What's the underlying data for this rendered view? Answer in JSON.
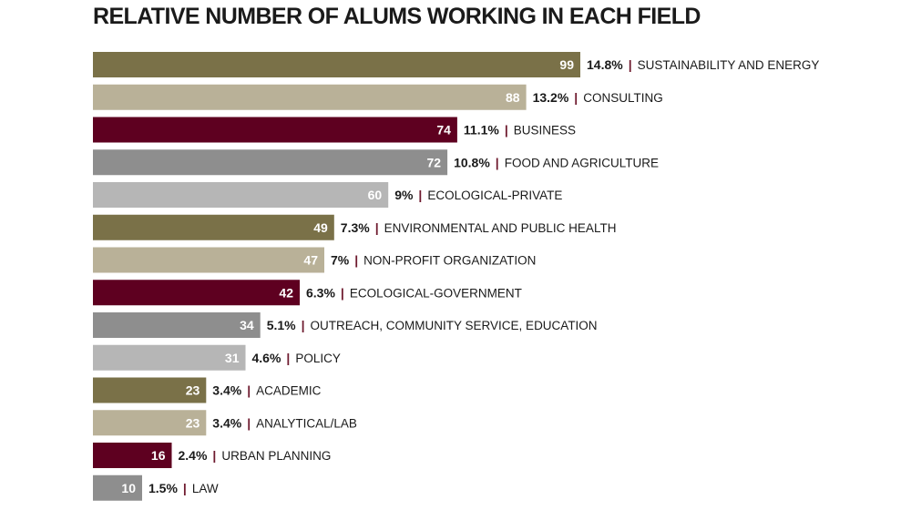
{
  "chart_data": {
    "type": "bar",
    "orientation": "horizontal",
    "title": "RELATIVE NUMBER OF ALUMS WORKING IN EACH FIELD",
    "xlabel": "",
    "ylabel": "",
    "xlim": [
      0,
      99
    ],
    "grid": false,
    "legend": "none",
    "separator": "|",
    "categories": [
      "SUSTAINABILITY AND ENERGY",
      "CONSULTING",
      "BUSINESS",
      "FOOD AND AGRICULTURE",
      "ECOLOGICAL-PRIVATE",
      "ENVIRONMENTAL AND PUBLIC HEALTH",
      "NON-PROFIT ORGANIZATION",
      "ECOLOGICAL-GOVERNMENT",
      "OUTREACH, COMMUNITY SERVICE, EDUCATION",
      "POLICY",
      "ACADEMIC",
      "ANALYTICAL/LAB",
      "URBAN PLANNING",
      "LAW"
    ],
    "values": [
      99,
      88,
      74,
      72,
      60,
      49,
      47,
      42,
      34,
      31,
      23,
      23,
      16,
      10
    ],
    "percent_labels": [
      "14.8%",
      "13.2%",
      "11.1%",
      "10.8%",
      "9%",
      "7.3%",
      "7%",
      "6.3%",
      "5.1%",
      "4.6%",
      "3.4%",
      "3.4%",
      "2.4%",
      "1.5%"
    ],
    "palette": [
      "#7a7148",
      "#b9b198",
      "#5e0020",
      "#8e8e8e",
      "#b6b6b6"
    ],
    "separator_color": "#6e1a2e"
  }
}
